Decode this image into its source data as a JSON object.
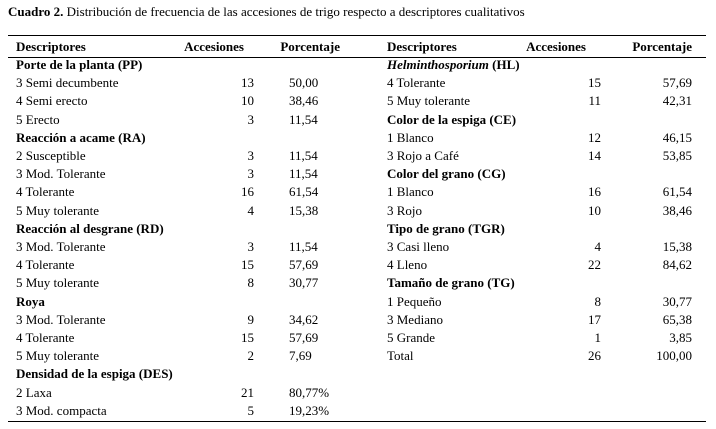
{
  "caption": {
    "label": "Cuadro 2.",
    "text": "Distribución de frecuencia de las accesiones de trigo respecto a descriptores cualitativos"
  },
  "header": [
    "Descriptores",
    "Accesiones",
    "Porcentaje"
  ],
  "left": {
    "groups": [
      {
        "title": "Porte de la planta (PP)",
        "rows": [
          [
            "3 Semi decumbente",
            "13",
            "50,00"
          ],
          [
            "4 Semi erecto",
            "10",
            "38,46"
          ],
          [
            "5 Erecto",
            "3",
            "11,54"
          ]
        ]
      },
      {
        "title": "Reacción a acame (RA)",
        "rows": [
          [
            "2 Susceptible",
            "3",
            "11,54"
          ],
          [
            "3 Mod. Tolerante",
            "3",
            "11,54"
          ],
          [
            "4 Tolerante",
            "16",
            "61,54"
          ],
          [
            "5 Muy tolerante",
            "4",
            "15,38"
          ]
        ]
      },
      {
        "title": "Reacción al desgrane (RD)",
        "rows": [
          [
            "3 Mod. Tolerante",
            "3",
            "11,54"
          ],
          [
            "4 Tolerante",
            "15",
            "57,69"
          ],
          [
            "5 Muy tolerante",
            "8",
            "30,77"
          ]
        ]
      },
      {
        "title": "Roya",
        "rows": [
          [
            "3 Mod. Tolerante",
            "9",
            "34,62"
          ],
          [
            "4 Tolerante",
            "15",
            "57,69"
          ],
          [
            "5 Muy tolerante",
            "2",
            "7,69"
          ]
        ]
      },
      {
        "title": "Densidad de la espiga (DES)",
        "rows": [
          [
            "2 Laxa",
            "21",
            "80,77%"
          ],
          [
            "3 Mod. compacta",
            "5",
            "19,23%"
          ]
        ]
      }
    ]
  },
  "right": {
    "groups": [
      {
        "title": {
          "italic": "Helminthosporium",
          "text": "(HL)"
        },
        "rows": [
          [
            "4 Tolerante",
            "15",
            "57,69"
          ],
          [
            "5 Muy tolerante",
            "11",
            "42,31"
          ]
        ]
      },
      {
        "title": "Color de la espiga (CE)",
        "rows": [
          [
            "1 Blanco",
            "12",
            "46,15"
          ],
          [
            "3 Rojo a Café",
            "14",
            "53,85"
          ]
        ]
      },
      {
        "title": "Color del grano (CG)",
        "rows": [
          [
            "1 Blanco",
            "16",
            "61,54"
          ],
          [
            "3 Rojo",
            "10",
            "38,46"
          ]
        ]
      },
      {
        "title": "Tipo de grano (TGR)",
        "rows": [
          [
            "3 Casi lleno",
            "4",
            "15,38"
          ],
          [
            "4 Lleno",
            "22",
            "84,62"
          ]
        ]
      },
      {
        "title": "Tamaño de grano (TG)",
        "rows": [
          [
            "1 Pequeño",
            "8",
            "30,77"
          ],
          [
            "3 Mediano",
            "17",
            "65,38"
          ],
          [
            "5 Grande",
            "1",
            "3,85"
          ]
        ]
      }
    ],
    "total": [
      "Total",
      "26",
      "100,00"
    ]
  }
}
